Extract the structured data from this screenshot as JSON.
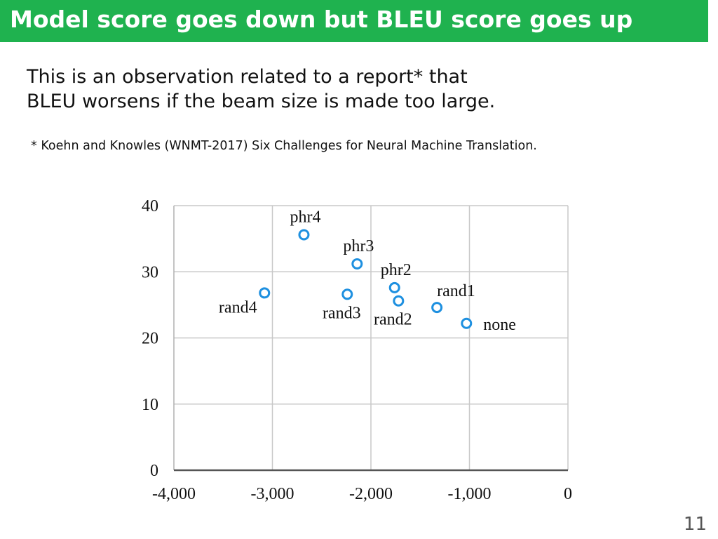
{
  "slide": {
    "title": "Model score goes down but BLEU score goes up",
    "body_lines": [
      "This is an observation related to a report* that",
      "BLEU worsens if the beam size is made too large."
    ],
    "footnote": "* Koehn and Knowles (WNMT-2017) Six Challenges for Neural Machine Translation.",
    "page_number": "11"
  },
  "colors": {
    "title_bar": "#1fb24f",
    "point": "#1e90e0",
    "grid": "#c8c8c8"
  },
  "chart_data": {
    "type": "scatter",
    "xlim": [
      -4000,
      0
    ],
    "ylim": [
      0,
      40
    ],
    "x_ticks": [
      -4000,
      -3000,
      -2000,
      -1000,
      0
    ],
    "x_tick_labels": [
      "-4,000",
      "-3,000",
      "-2,000",
      "-1,000",
      "0"
    ],
    "y_ticks": [
      0,
      10,
      20,
      30,
      40
    ],
    "y_tick_labels": [
      "0",
      "10",
      "20",
      "30",
      "40"
    ],
    "grid": true,
    "points": [
      {
        "label": "phr4",
        "x": -2680,
        "y": 35.6,
        "label_pos": "above"
      },
      {
        "label": "phr3",
        "x": -2140,
        "y": 31.2,
        "label_pos": "above"
      },
      {
        "label": "phr2",
        "x": -1760,
        "y": 27.6,
        "label_pos": "above"
      },
      {
        "label": "rand4",
        "x": -3080,
        "y": 26.8,
        "label_pos": "left"
      },
      {
        "label": "rand3",
        "x": -2240,
        "y": 26.6,
        "label_pos": "below"
      },
      {
        "label": "rand2",
        "x": -1720,
        "y": 25.6,
        "label_pos": "below"
      },
      {
        "label": "rand1",
        "x": -1330,
        "y": 24.6,
        "label_pos": "above-right"
      },
      {
        "label": "none",
        "x": -1030,
        "y": 22.2,
        "label_pos": "right"
      }
    ]
  }
}
